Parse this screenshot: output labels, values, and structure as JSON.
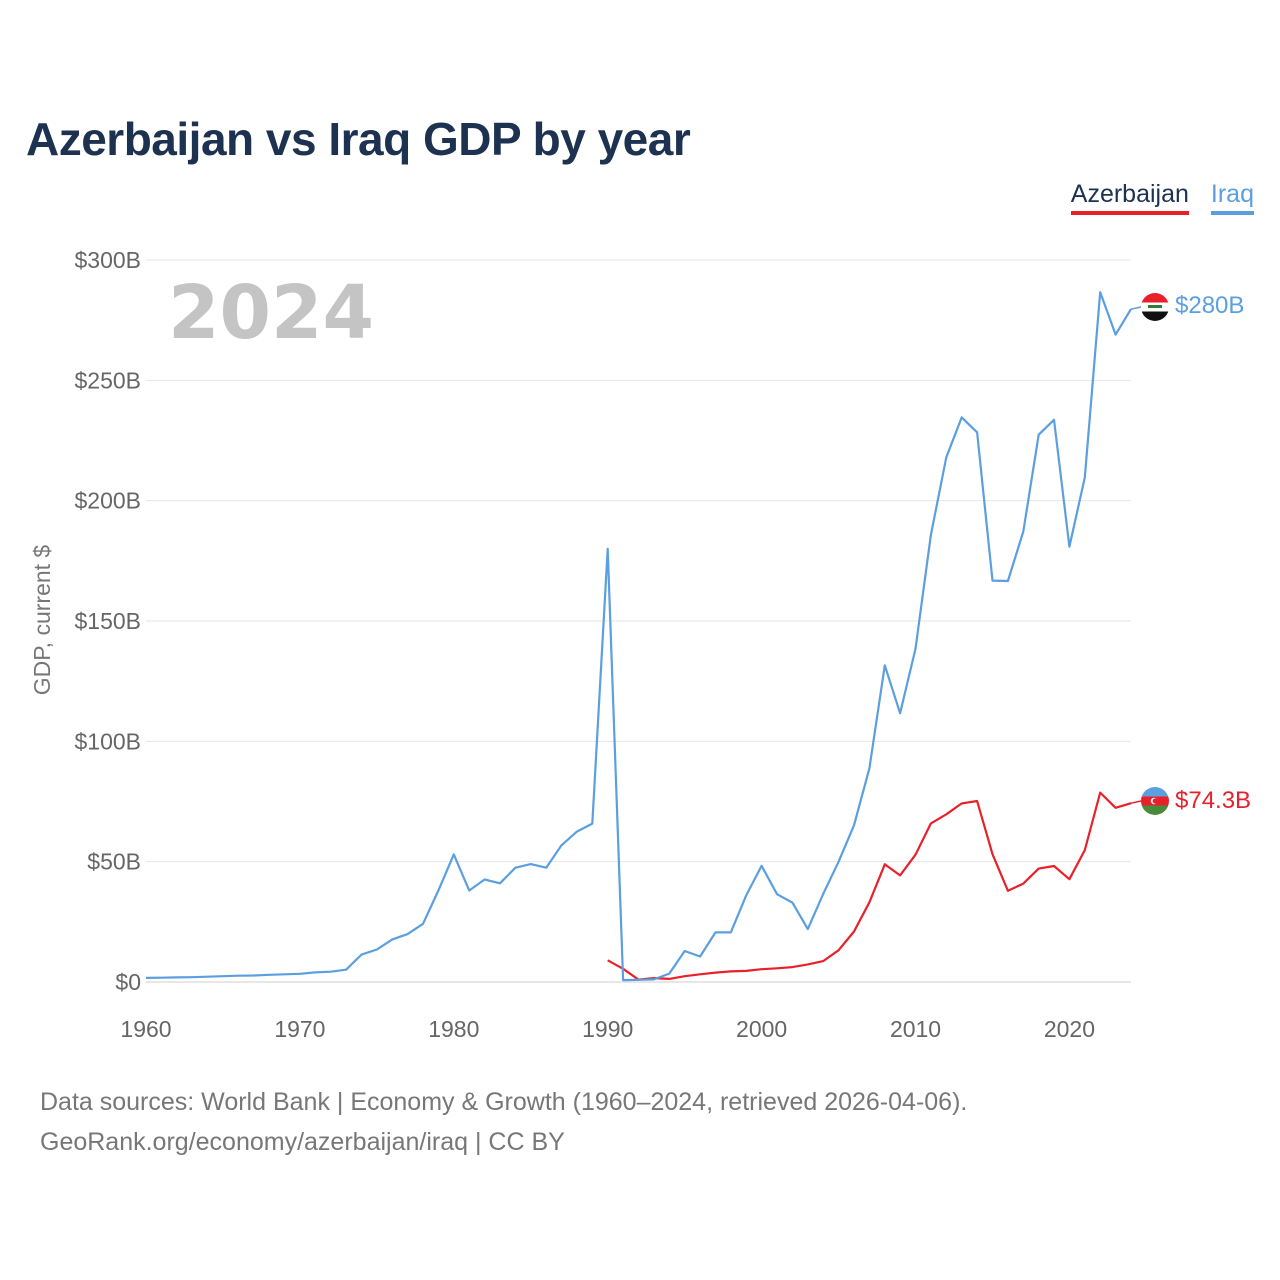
{
  "title": "Azerbaijan vs Iraq GDP by year",
  "legend": [
    {
      "label": "Azerbaijan",
      "color": "#e8202a"
    },
    {
      "label": "Iraq",
      "color": "#5b9fe0"
    }
  ],
  "footer": {
    "line1": "Data sources: World Bank | Economy & Growth (1960–2024, retrieved 2026-04-06).",
    "line2": "GeoRank.org/economy/azerbaijan/iraq | CC BY"
  },
  "year_overlay": "2024",
  "chart_data": {
    "type": "line",
    "title": "Azerbaijan vs Iraq GDP by year",
    "xlabel": "",
    "ylabel": "GDP, current $",
    "xlim": [
      1960,
      2024
    ],
    "ylim": [
      0,
      300
    ],
    "y_unit": "billion USD",
    "x_ticks": [
      1960,
      1970,
      1980,
      1990,
      2000,
      2010,
      2020
    ],
    "y_ticks": [
      {
        "value": 0,
        "label": "$0"
      },
      {
        "value": 50,
        "label": "$50B"
      },
      {
        "value": 100,
        "label": "$100B"
      },
      {
        "value": 150,
        "label": "$150B"
      },
      {
        "value": 200,
        "label": "$200B"
      },
      {
        "value": 250,
        "label": "$250B"
      },
      {
        "value": 300,
        "label": "$300B"
      }
    ],
    "grid": true,
    "legend_position": "top-right",
    "series": [
      {
        "name": "Azerbaijan",
        "color": "#e8202a",
        "end_label": "$74.3B",
        "x": [
          1990,
          1991,
          1992,
          1993,
          1994,
          1995,
          1996,
          1997,
          1998,
          1999,
          2000,
          2001,
          2002,
          2003,
          2004,
          2005,
          2006,
          2007,
          2008,
          2009,
          2010,
          2011,
          2012,
          2013,
          2014,
          2015,
          2016,
          2017,
          2018,
          2019,
          2020,
          2021,
          2022,
          2023,
          2024
        ],
        "values": [
          9.0,
          5.5,
          1.0,
          1.6,
          1.3,
          2.4,
          3.2,
          3.9,
          4.4,
          4.6,
          5.3,
          5.7,
          6.2,
          7.3,
          8.7,
          13.2,
          21.0,
          33.1,
          48.9,
          44.3,
          52.9,
          65.9,
          69.7,
          74.2,
          75.2,
          53.1,
          37.9,
          40.9,
          47.1,
          48.2,
          42.7,
          54.8,
          78.7,
          72.4,
          74.3
        ]
      },
      {
        "name": "Iraq",
        "color": "#5b9fe0",
        "end_label": "$280B",
        "x": [
          1960,
          1961,
          1962,
          1963,
          1964,
          1965,
          1966,
          1967,
          1968,
          1969,
          1970,
          1971,
          1972,
          1973,
          1974,
          1975,
          1976,
          1977,
          1978,
          1979,
          1980,
          1981,
          1982,
          1983,
          1984,
          1985,
          1986,
          1987,
          1988,
          1989,
          1990,
          1991,
          1992,
          1993,
          1994,
          1995,
          1996,
          1997,
          1998,
          1999,
          2000,
          2001,
          2002,
          2003,
          2004,
          2005,
          2006,
          2007,
          2008,
          2009,
          2010,
          2011,
          2012,
          2013,
          2014,
          2015,
          2016,
          2017,
          2018,
          2019,
          2020,
          2021,
          2022,
          2023,
          2024
        ],
        "values": [
          1.7,
          1.8,
          1.9,
          2.0,
          2.2,
          2.4,
          2.6,
          2.7,
          3.0,
          3.2,
          3.4,
          4.0,
          4.3,
          5.1,
          11.4,
          13.5,
          17.7,
          19.9,
          24.2,
          38.0,
          53.0,
          38.0,
          42.6,
          41.0,
          47.5,
          49.0,
          47.5,
          56.8,
          62.5,
          65.8,
          180.0,
          0.8,
          0.9,
          1.1,
          3.5,
          12.9,
          10.6,
          20.6,
          20.6,
          36.0,
          48.3,
          36.5,
          33.0,
          22.0,
          36.6,
          50.0,
          65.1,
          88.8,
          131.6,
          111.7,
          138.5,
          185.8,
          218.0,
          234.6,
          228.4,
          166.8,
          166.6,
          187.2,
          227.4,
          233.6,
          180.9,
          209.6,
          286.6,
          269.0,
          279.6
        ]
      }
    ]
  }
}
